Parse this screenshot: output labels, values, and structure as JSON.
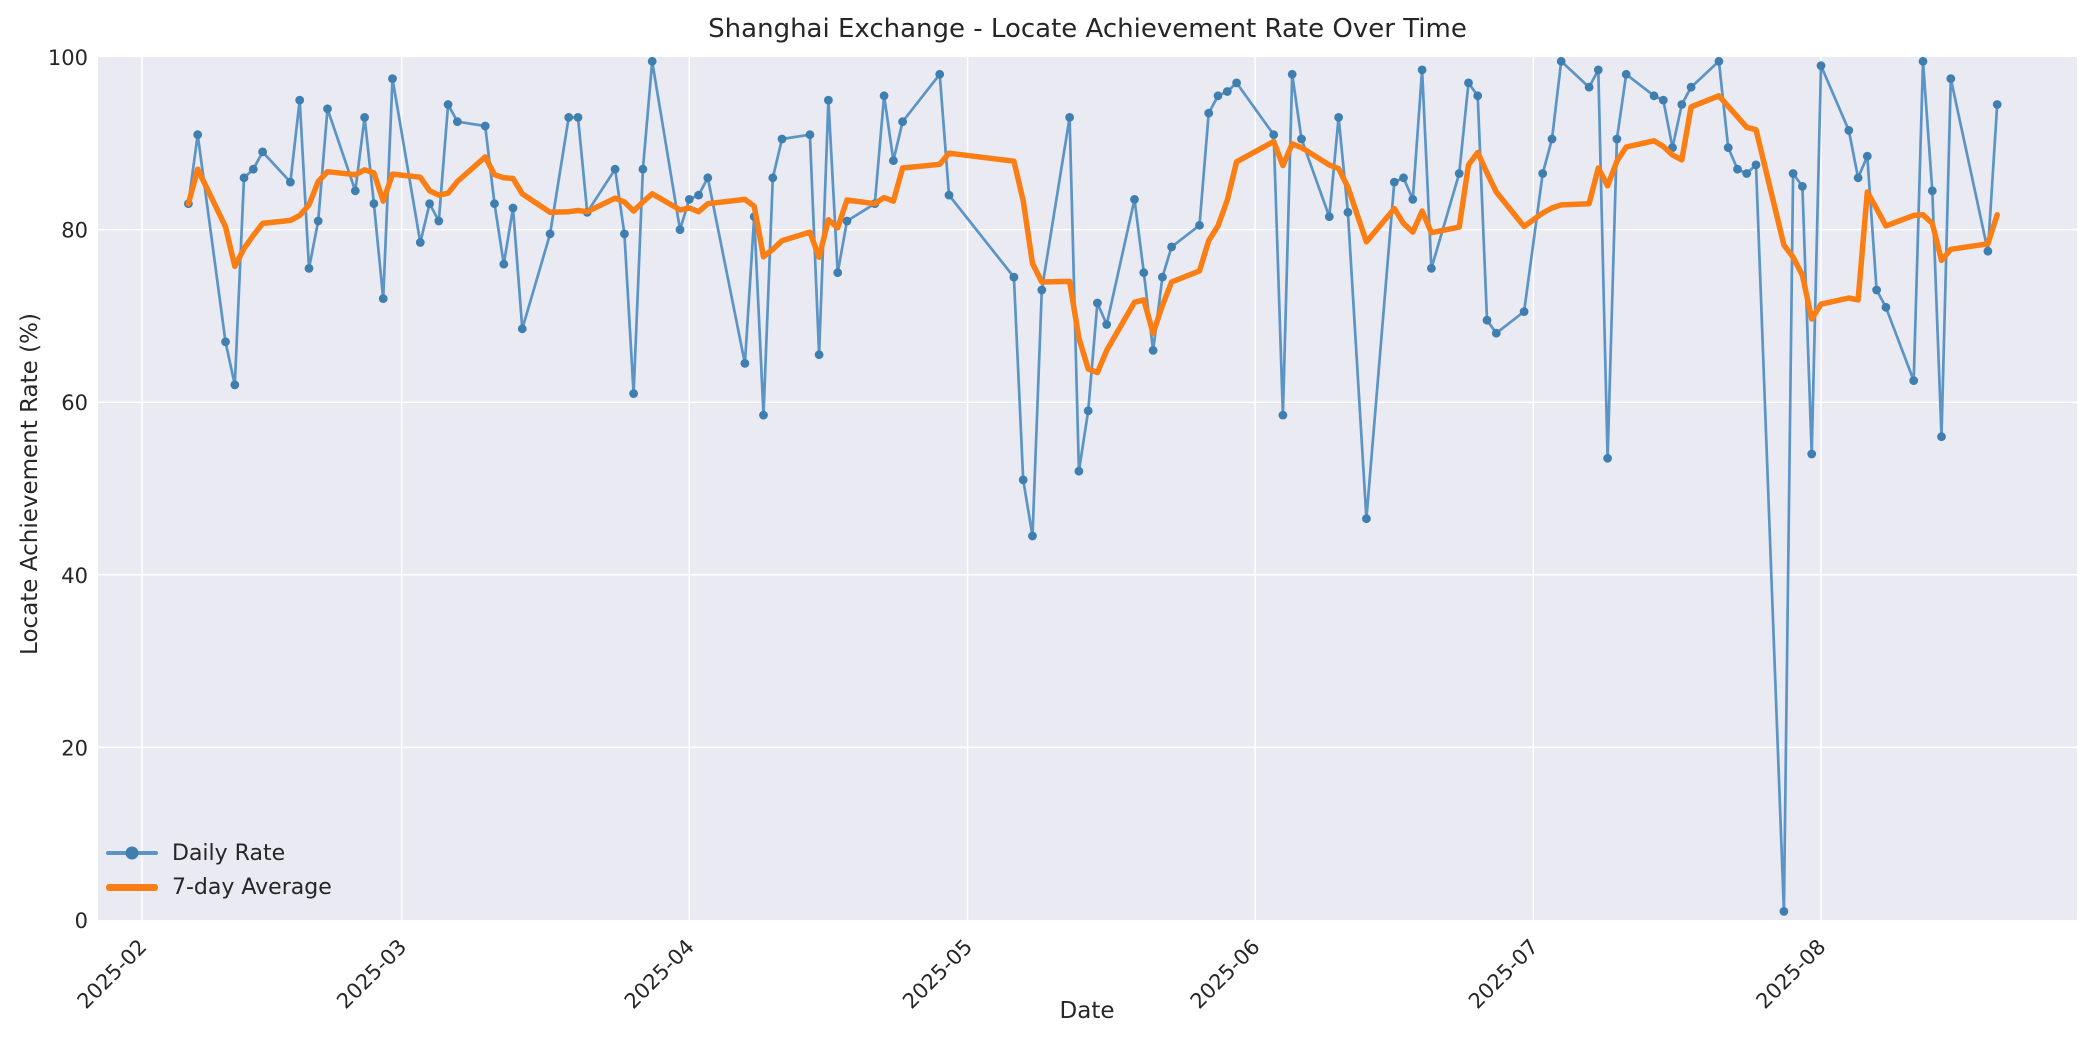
{
  "chart_data": {
    "type": "line",
    "title": "Shanghai Exchange - Locate Achievement Rate Over Time",
    "xlabel": "Date",
    "ylabel": "Locate Achievement Rate (%)",
    "ylim": [
      0,
      100
    ],
    "y_ticks": [
      0,
      20,
      40,
      60,
      80,
      100
    ],
    "x_ticks": [
      {
        "label": "2025-02",
        "date": "2025-02-01"
      },
      {
        "label": "2025-03",
        "date": "2025-03-01"
      },
      {
        "label": "2025-04",
        "date": "2025-04-01"
      },
      {
        "label": "2025-05",
        "date": "2025-05-01"
      },
      {
        "label": "2025-06",
        "date": "2025-06-01"
      },
      {
        "label": "2025-07",
        "date": "2025-07-01"
      },
      {
        "label": "2025-08",
        "date": "2025-08-01"
      }
    ],
    "grid": true,
    "plot_background": "#eaeaf2",
    "grid_color": "#ffffff",
    "legend_position": "lower left",
    "series": [
      {
        "name": "Daily Rate",
        "style": "line+markers",
        "color": "#5b94c5",
        "marker_color": "#3f7fb0",
        "points": [
          [
            "2025-02-06",
            83
          ],
          [
            "2025-02-07",
            91
          ],
          [
            "2025-02-10",
            67
          ],
          [
            "2025-02-11",
            62
          ],
          [
            "2025-02-12",
            86
          ],
          [
            "2025-02-13",
            87
          ],
          [
            "2025-02-14",
            89
          ],
          [
            "2025-02-17",
            85.5
          ],
          [
            "2025-02-18",
            95
          ],
          [
            "2025-02-19",
            75.5
          ],
          [
            "2025-02-20",
            81
          ],
          [
            "2025-02-21",
            94
          ],
          [
            "2025-02-24",
            84.5
          ],
          [
            "2025-02-25",
            93
          ],
          [
            "2025-02-26",
            83
          ],
          [
            "2025-02-27",
            72
          ],
          [
            "2025-02-28",
            97.5
          ],
          [
            "2025-03-03",
            78.5
          ],
          [
            "2025-03-04",
            83
          ],
          [
            "2025-03-05",
            81
          ],
          [
            "2025-03-06",
            94.5
          ],
          [
            "2025-03-07",
            92.5
          ],
          [
            "2025-03-10",
            92
          ],
          [
            "2025-03-11",
            83
          ],
          [
            "2025-03-12",
            76
          ],
          [
            "2025-03-13",
            82.5
          ],
          [
            "2025-03-14",
            68.5
          ],
          [
            "2025-03-17",
            79.5
          ],
          [
            "2025-03-19",
            93
          ],
          [
            "2025-03-20",
            93
          ],
          [
            "2025-03-21",
            82
          ],
          [
            "2025-03-24",
            87
          ],
          [
            "2025-03-25",
            79.5
          ],
          [
            "2025-03-26",
            61
          ],
          [
            "2025-03-27",
            87
          ],
          [
            "2025-03-28",
            99.5
          ],
          [
            "2025-03-31",
            80
          ],
          [
            "2025-04-01",
            83.5
          ],
          [
            "2025-04-02",
            84
          ],
          [
            "2025-04-03",
            86
          ],
          [
            "2025-04-07",
            64.5
          ],
          [
            "2025-04-08",
            81.5
          ],
          [
            "2025-04-09",
            58.5
          ],
          [
            "2025-04-10",
            86
          ],
          [
            "2025-04-11",
            90.5
          ],
          [
            "2025-04-14",
            91
          ],
          [
            "2025-04-15",
            65.5
          ],
          [
            "2025-04-16",
            95
          ],
          [
            "2025-04-17",
            75
          ],
          [
            "2025-04-18",
            81
          ],
          [
            "2025-04-21",
            83
          ],
          [
            "2025-04-22",
            95.5
          ],
          [
            "2025-04-23",
            88
          ],
          [
            "2025-04-24",
            92.5
          ],
          [
            "2025-04-28",
            98
          ],
          [
            "2025-04-29",
            84
          ],
          [
            "2025-05-06",
            74.5
          ],
          [
            "2025-05-07",
            51
          ],
          [
            "2025-05-08",
            44.5
          ],
          [
            "2025-05-09",
            73
          ],
          [
            "2025-05-12",
            93
          ],
          [
            "2025-05-13",
            52
          ],
          [
            "2025-05-14",
            59
          ],
          [
            "2025-05-15",
            71.5
          ],
          [
            "2025-05-16",
            69
          ],
          [
            "2025-05-19",
            83.5
          ],
          [
            "2025-05-20",
            75
          ],
          [
            "2025-05-21",
            66
          ],
          [
            "2025-05-22",
            74.5
          ],
          [
            "2025-05-23",
            78
          ],
          [
            "2025-05-26",
            80.5
          ],
          [
            "2025-05-27",
            93.5
          ],
          [
            "2025-05-28",
            95.5
          ],
          [
            "2025-05-29",
            96
          ],
          [
            "2025-05-30",
            97
          ],
          [
            "2025-06-03",
            91
          ],
          [
            "2025-06-04",
            58.5
          ],
          [
            "2025-06-05",
            98
          ],
          [
            "2025-06-06",
            90.5
          ],
          [
            "2025-06-09",
            81.5
          ],
          [
            "2025-06-10",
            93
          ],
          [
            "2025-06-11",
            82
          ],
          [
            "2025-06-13",
            46.5
          ],
          [
            "2025-06-16",
            85.5
          ],
          [
            "2025-06-17",
            86
          ],
          [
            "2025-06-18",
            83.5
          ],
          [
            "2025-06-19",
            98.5
          ],
          [
            "2025-06-20",
            75.5
          ],
          [
            "2025-06-23",
            86.5
          ],
          [
            "2025-06-24",
            97
          ],
          [
            "2025-06-25",
            95.5
          ],
          [
            "2025-06-26",
            69.5
          ],
          [
            "2025-06-27",
            68
          ],
          [
            "2025-06-30",
            70.5
          ],
          [
            "2025-07-02",
            86.5
          ],
          [
            "2025-07-03",
            90.5
          ],
          [
            "2025-07-04",
            99.5
          ],
          [
            "2025-07-07",
            96.5
          ],
          [
            "2025-07-08",
            98.5
          ],
          [
            "2025-07-09",
            53.5
          ],
          [
            "2025-07-10",
            90.5
          ],
          [
            "2025-07-11",
            98
          ],
          [
            "2025-07-14",
            95.5
          ],
          [
            "2025-07-15",
            95
          ],
          [
            "2025-07-16",
            89.5
          ],
          [
            "2025-07-17",
            94.5
          ],
          [
            "2025-07-18",
            96.5
          ],
          [
            "2025-07-21",
            99.5
          ],
          [
            "2025-07-22",
            89.5
          ],
          [
            "2025-07-23",
            87
          ],
          [
            "2025-07-24",
            86.5
          ],
          [
            "2025-07-25",
            87.5
          ],
          [
            "2025-07-28",
            1
          ],
          [
            "2025-07-29",
            86.5
          ],
          [
            "2025-07-30",
            85
          ],
          [
            "2025-07-31",
            54
          ],
          [
            "2025-08-01",
            99
          ],
          [
            "2025-08-04",
            91.5
          ],
          [
            "2025-08-05",
            86
          ],
          [
            "2025-08-06",
            88.5
          ],
          [
            "2025-08-07",
            73
          ],
          [
            "2025-08-08",
            71
          ],
          [
            "2025-08-11",
            62.5
          ],
          [
            "2025-08-12",
            99.5
          ],
          [
            "2025-08-13",
            84.5
          ],
          [
            "2025-08-14",
            56
          ],
          [
            "2025-08-15",
            97.5
          ],
          [
            "2025-08-19",
            77.5
          ],
          [
            "2025-08-20",
            94.5
          ]
        ]
      },
      {
        "name": "7-day Average",
        "style": "line",
        "color": "#fa7e14",
        "derived_from": "Daily Rate",
        "derivation": "rolling mean over last 7 data points (min_periods=1)"
      }
    ]
  }
}
